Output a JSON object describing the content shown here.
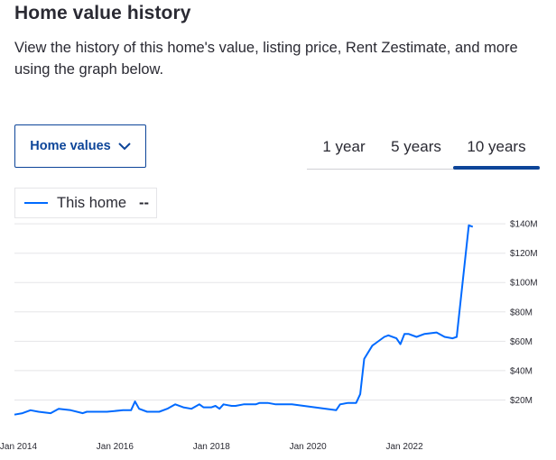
{
  "header": {
    "title": "Home value history",
    "subtitle": "View the history of this home's value, listing price, Rent Zestimate, and more using the graph below."
  },
  "controls": {
    "dropdown_label": "Home values",
    "tabs": [
      {
        "label": "1 year",
        "active": false
      },
      {
        "label": "5 years",
        "active": false
      },
      {
        "label": "10 years",
        "active": true
      }
    ]
  },
  "legend": {
    "series_label": "This home",
    "value": "--"
  },
  "colors": {
    "accent": "#0d4599",
    "line": "#006aff",
    "grid": "#e5e5e8"
  },
  "chart_data": {
    "type": "line",
    "xlabel": "",
    "ylabel": "",
    "grid": true,
    "legend_position": "top-left",
    "x_ticks": [
      "Jan 2014",
      "Jan 2016",
      "Jan 2018",
      "Jan 2020",
      "Jan 2022"
    ],
    "y_ticks": [
      "$20M",
      "$40M",
      "$60M",
      "$80M",
      "$100M",
      "$120M",
      "$140M"
    ],
    "xlim": [
      "2013-12",
      "2024-01"
    ],
    "ylim": [
      0,
      145
    ],
    "series": [
      {
        "name": "This home",
        "x": [
          "2013-12",
          "2014-02",
          "2014-04",
          "2014-06",
          "2014-09",
          "2014-11",
          "2015-02",
          "2015-05",
          "2015-06",
          "2015-09",
          "2015-11",
          "2016-03",
          "2016-05",
          "2016-06",
          "2016-07",
          "2016-09",
          "2016-10",
          "2016-12",
          "2017-02",
          "2017-04",
          "2017-06",
          "2017-08",
          "2017-10",
          "2017-11",
          "2018-01",
          "2018-02",
          "2018-03",
          "2018-04",
          "2018-06",
          "2018-07",
          "2018-09",
          "2018-10",
          "2018-11",
          "2018-12",
          "2019-01",
          "2019-03",
          "2019-05",
          "2019-06",
          "2019-09",
          "2020-08",
          "2020-09",
          "2020-11",
          "2021-01",
          "2021-02",
          "2021-03",
          "2021-05",
          "2021-06",
          "2021-08",
          "2021-09",
          "2021-11",
          "2021-12",
          "2022-01",
          "2022-02",
          "2022-04",
          "2022-06",
          "2022-09",
          "2022-11",
          "2023-01",
          "2023-02",
          "2023-05",
          "2023-06"
        ],
        "values": [
          10,
          11,
          13,
          12,
          11,
          14,
          13,
          11,
          12,
          12,
          12,
          13,
          13,
          19,
          14,
          12,
          12,
          12,
          14,
          17,
          15,
          14,
          17,
          15,
          15,
          16,
          14,
          17,
          16,
          16,
          17,
          17,
          17,
          17,
          18,
          18,
          17,
          17,
          17,
          13,
          17,
          18,
          18,
          24,
          48,
          57,
          59,
          63,
          64,
          62,
          58,
          65,
          65,
          63,
          65,
          66,
          63,
          62,
          63,
          139,
          138
        ]
      }
    ]
  }
}
